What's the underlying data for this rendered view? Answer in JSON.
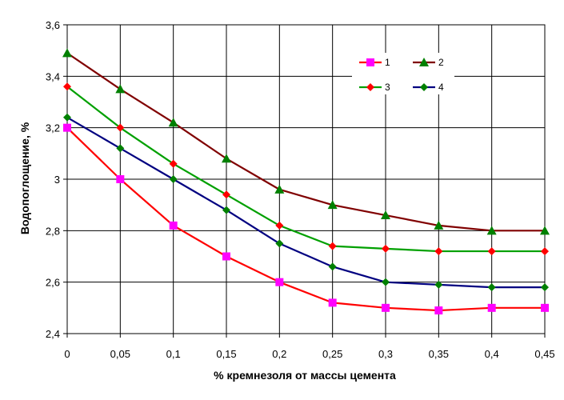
{
  "chart_data": {
    "type": "line",
    "xlabel": "% кремнезоля от массы цемента",
    "ylabel": "Водопоглощение, %",
    "x": [
      0,
      0.05,
      0.1,
      0.15,
      0.2,
      0.25,
      0.3,
      0.35,
      0.4,
      0.45
    ],
    "x_tick_labels": [
      "0",
      "0,05",
      "0,1",
      "0,15",
      "0,2",
      "0,25",
      "0,3",
      "0,35",
      "0,4",
      "0,45"
    ],
    "y_ticks": [
      2.4,
      2.6,
      2.8,
      3.0,
      3.2,
      3.4,
      3.6
    ],
    "y_tick_labels": [
      "2,4",
      "2,6",
      "2,8",
      "3",
      "3,2",
      "3,4",
      "3,6"
    ],
    "xlim": [
      0,
      0.45
    ],
    "ylim": [
      2.4,
      3.6
    ],
    "grid": true,
    "legend_position": "top-right",
    "series": [
      {
        "name": "1",
        "color": "#ff0000",
        "marker": "square",
        "marker_color": "#ff00ff",
        "values": [
          3.2,
          3.0,
          2.82,
          2.7,
          2.6,
          2.52,
          2.5,
          2.49,
          2.5,
          2.5
        ]
      },
      {
        "name": "2",
        "color": "#800000",
        "marker": "triangle",
        "marker_color": "#008000",
        "values": [
          3.49,
          3.35,
          3.22,
          3.08,
          2.96,
          2.9,
          2.86,
          2.82,
          2.8,
          2.8
        ]
      },
      {
        "name": "3",
        "color": "#00a000",
        "marker": "diamond",
        "marker_color": "#ff0000",
        "values": [
          3.36,
          3.2,
          3.06,
          2.94,
          2.82,
          2.74,
          2.73,
          2.72,
          2.72,
          2.72
        ]
      },
      {
        "name": "4",
        "color": "#000080",
        "marker": "diamond",
        "marker_color": "#008000",
        "values": [
          3.24,
          3.12,
          3.0,
          2.88,
          2.75,
          2.66,
          2.6,
          2.59,
          2.58,
          2.58
        ]
      }
    ]
  }
}
